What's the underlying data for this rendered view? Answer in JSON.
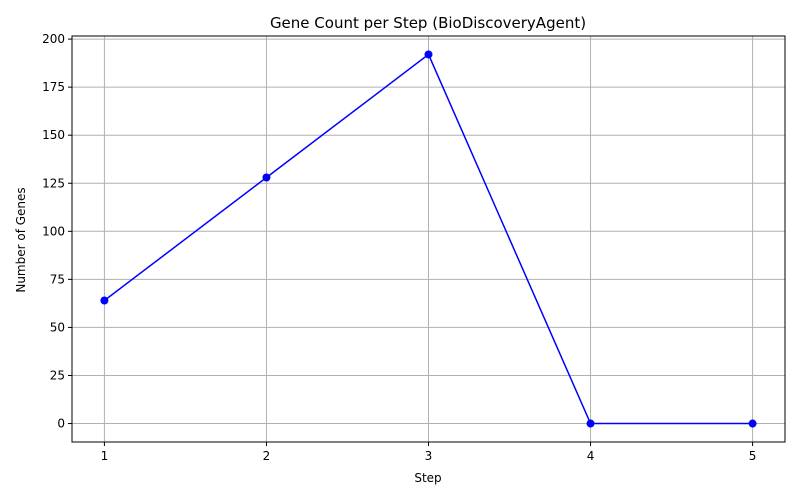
{
  "chart_data": {
    "type": "line",
    "title": "Gene Count per Step (BioDiscoveryAgent)",
    "xlabel": "Step",
    "ylabel": "Number of Genes",
    "x": [
      1,
      2,
      3,
      4,
      5
    ],
    "series": [
      {
        "values": [
          64,
          128,
          192,
          0,
          0
        ],
        "color": "#0000ff",
        "marker": "circle"
      }
    ],
    "xlim": [
      0.8,
      5.2
    ],
    "ylim": [
      -9.6,
      201.6
    ],
    "xticks": [
      1,
      2,
      3,
      4,
      5
    ],
    "yticks": [
      0,
      25,
      50,
      75,
      100,
      125,
      150,
      175,
      200
    ],
    "grid": true
  }
}
